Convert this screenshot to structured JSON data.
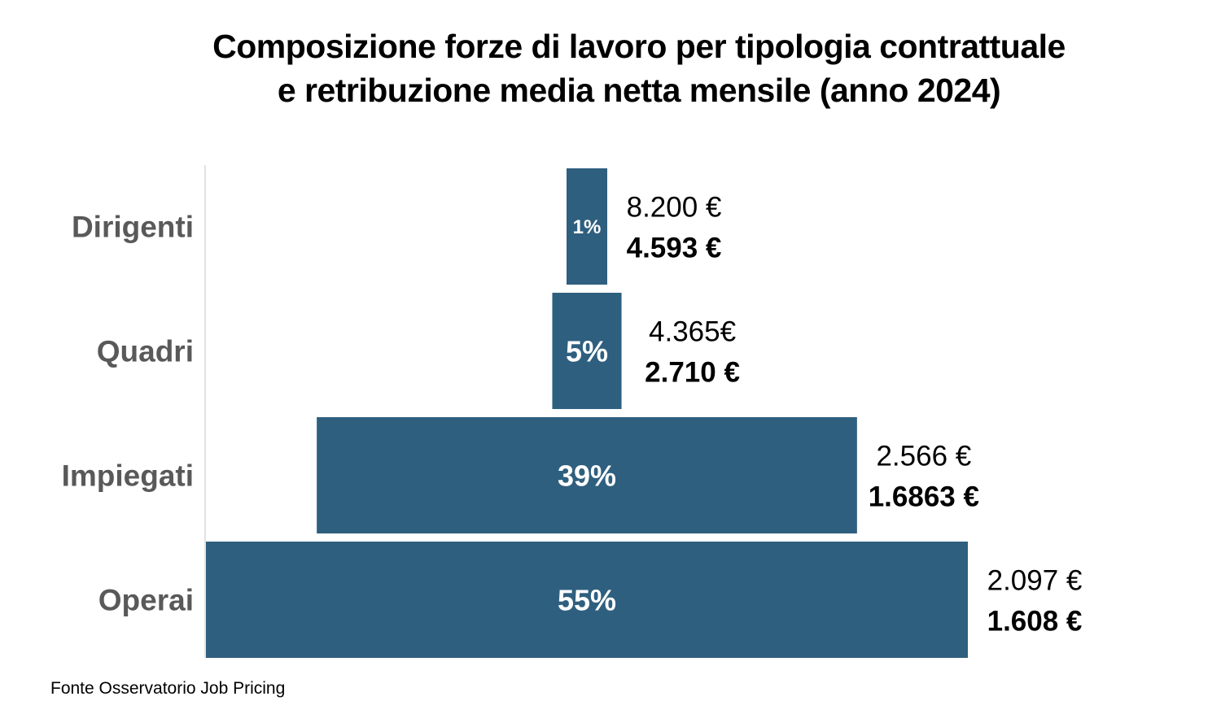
{
  "chart_data": {
    "type": "bar",
    "orientation": "horizontal-funnel",
    "title": "Composizione forze di lavoro per tipologia contrattuale e retribuzione media netta mensile (anno 2024)",
    "title_lines": [
      "Composizione forze di lavoro per tipologia contrattuale",
      "e retribuzione media netta mensile (anno 2024)"
    ],
    "categories": [
      "Dirigenti",
      "Quadri",
      "Impiegati",
      "Operai"
    ],
    "values": [
      1,
      5,
      39,
      55
    ],
    "value_labels": [
      "1%",
      "5%",
      "39%",
      "55%"
    ],
    "annotations_gross": [
      "8.200 €",
      "4.365€",
      "2.566 €",
      "2.097 €"
    ],
    "annotations_net": [
      "4.593 €",
      "2.710 €",
      "1.6863 €",
      "1.608 €"
    ],
    "grid": false,
    "legend": "none",
    "bar_color": "#2F5F7F"
  },
  "source": "Fonte Osservatorio Job Pricing"
}
